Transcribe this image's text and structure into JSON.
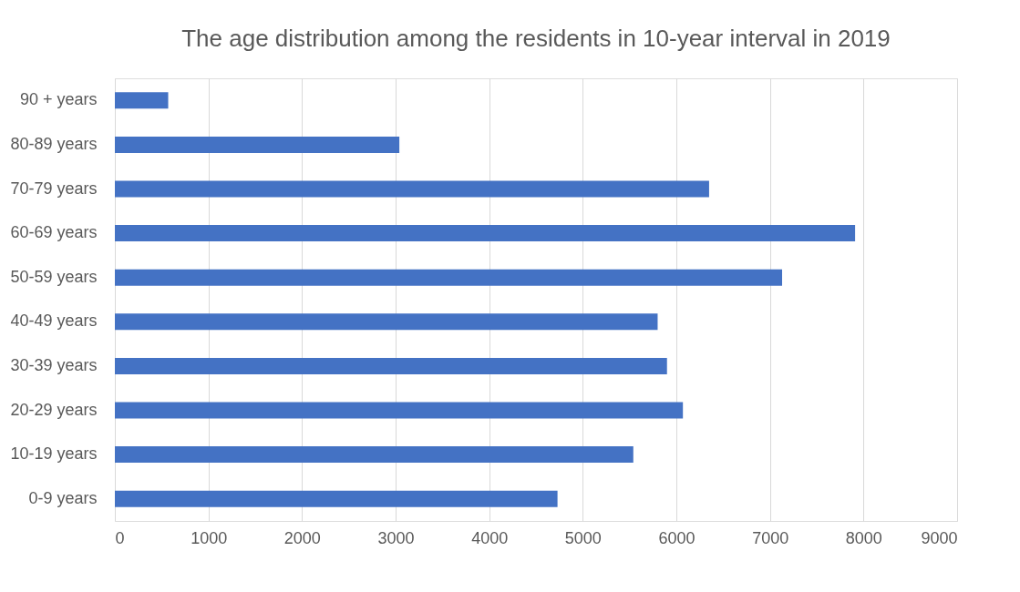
{
  "chart_data": {
    "type": "bar",
    "orientation": "horizontal",
    "title": "The age distribution among the residents in 10-year interval in 2019",
    "categories": [
      "90 + years",
      "80-89 years",
      "70-79 years",
      "60-69 years",
      "50-59 years",
      "40-49 years",
      "30-39 years",
      "20-29 years",
      "10-19 years",
      "0-9 years"
    ],
    "values": [
      570,
      3040,
      6350,
      7910,
      7130,
      5800,
      5900,
      6070,
      5540,
      4730
    ],
    "color": "#4472c4",
    "xlim": [
      0,
      9000
    ],
    "xticks": [
      0,
      1000,
      2000,
      3000,
      4000,
      5000,
      6000,
      7000,
      8000,
      9000
    ],
    "grid": "x"
  }
}
